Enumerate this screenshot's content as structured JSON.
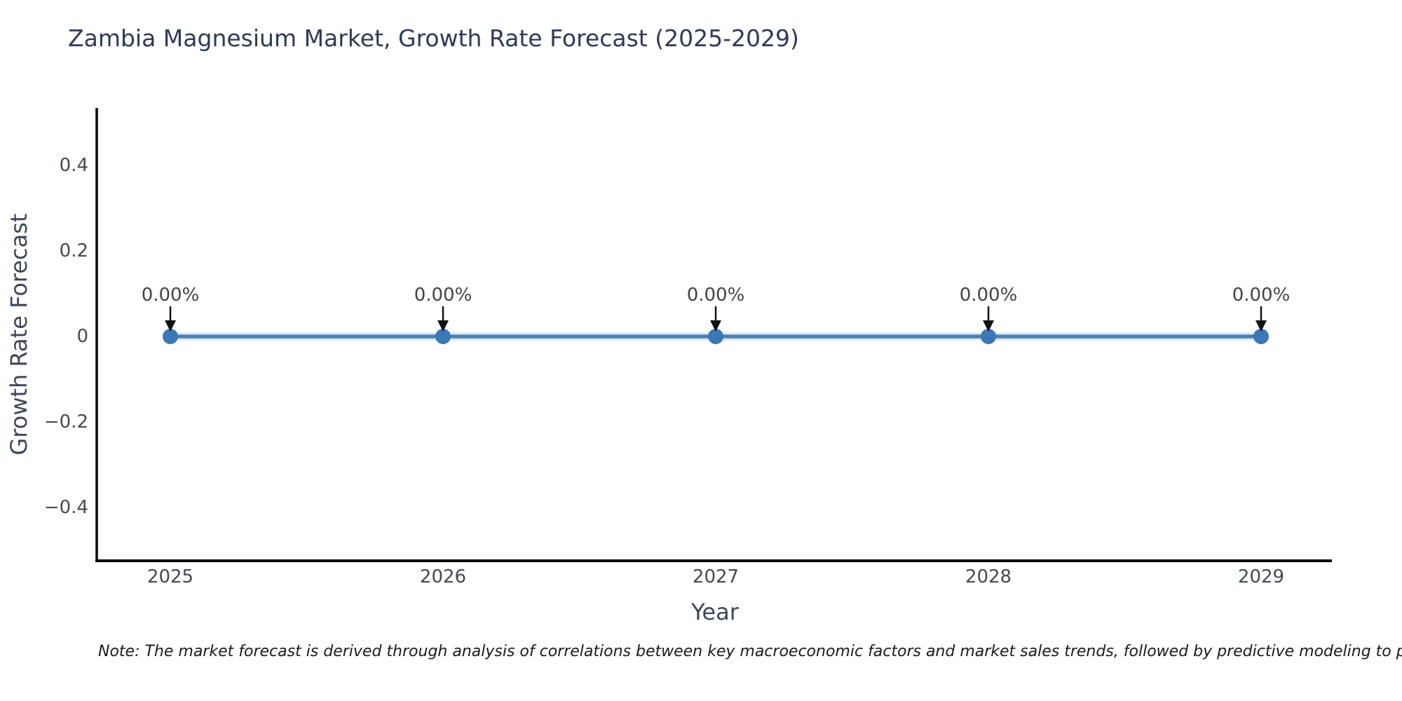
{
  "title": "Zambia Magnesium Market, Growth Rate Forecast (2025-2029)",
  "footnote": "Note: The market forecast is derived through analysis of correlations between key macroeconomic factors and market sales trends, followed by predictive modeling to project future sa",
  "chart_data": {
    "type": "line",
    "title": "Zambia Magnesium Market, Growth Rate Forecast (2025-2029)",
    "xlabel": "Year",
    "ylabel": "Growth Rate Forecast",
    "x": [
      2025,
      2026,
      2027,
      2028,
      2029
    ],
    "xtick_labels": [
      "2025",
      "2026",
      "2027",
      "2028",
      "2029"
    ],
    "series": [
      {
        "name": "Growth Rate Forecast",
        "values": [
          0,
          0,
          0,
          0,
          0
        ]
      }
    ],
    "point_labels": [
      "0.00%",
      "0.00%",
      "0.00%",
      "0.00%",
      "0.00%"
    ],
    "yticks": [
      0.4,
      0.2,
      0,
      -0.2,
      -0.4
    ],
    "ytick_labels": [
      "0.4",
      "0.2",
      "0",
      "−0.2",
      "−0.4"
    ],
    "ylim": [
      -0.53,
      0.53
    ],
    "grid": false,
    "legend": "none",
    "marker_style": "filled-circle-with-down-arrow-annotation",
    "colors": {
      "line": "#4c7fad",
      "line_halo": "#c3d9ec",
      "marker": "#3a78b8",
      "axis_spine": "#000000",
      "tick_text": "#444a52",
      "title_text": "#2e3a56",
      "axis_label_text": "#3c4759",
      "annotation_text": "#3f444b",
      "arrow": "#101010",
      "background": "#ffffff"
    }
  }
}
